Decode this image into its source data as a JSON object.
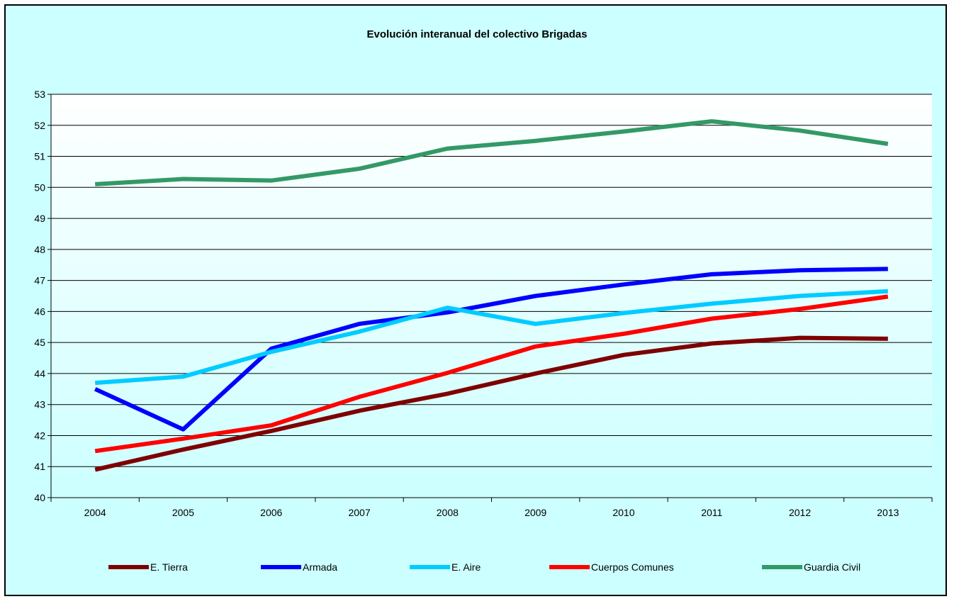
{
  "chart_data": {
    "type": "line",
    "title": "Evolución interanual del colectivo Brigadas",
    "xlabel": "",
    "ylabel": "",
    "categories": [
      "2004",
      "2005",
      "2006",
      "2007",
      "2008",
      "2009",
      "2010",
      "2011",
      "2012",
      "2013"
    ],
    "ylim": [
      40,
      53
    ],
    "yticks": [
      "40",
      "41",
      "42",
      "43",
      "44",
      "45",
      "46",
      "47",
      "48",
      "49",
      "50",
      "51",
      "52",
      "53"
    ],
    "grid": "horizontal",
    "legend": "bottom",
    "background": "#ccffff",
    "plot_gradient": [
      "#ffffff",
      "#ccffff"
    ],
    "series": [
      {
        "name": "E. Tierra",
        "color": "#7f0000",
        "values": [
          40.9,
          41.55,
          42.15,
          42.8,
          43.35,
          44.0,
          44.6,
          44.97,
          45.15,
          45.12
        ]
      },
      {
        "name": "Armada",
        "color": "#0000ff",
        "values": [
          43.5,
          42.2,
          44.8,
          45.6,
          45.97,
          46.5,
          46.87,
          47.2,
          47.33,
          47.37
        ]
      },
      {
        "name": "E. Aire",
        "color": "#00ccff",
        "values": [
          43.7,
          43.9,
          44.7,
          45.35,
          46.12,
          45.6,
          45.95,
          46.25,
          46.5,
          46.65
        ]
      },
      {
        "name": "Cuerpos Comunes",
        "color": "#ff0000",
        "values": [
          41.5,
          41.9,
          42.33,
          43.25,
          44.02,
          44.87,
          45.28,
          45.77,
          46.08,
          46.48
        ]
      },
      {
        "name": "Guardia Civil",
        "color": "#339966",
        "values": [
          50.1,
          50.27,
          50.22,
          50.6,
          51.25,
          51.5,
          51.8,
          52.13,
          51.83,
          51.4
        ]
      }
    ]
  }
}
